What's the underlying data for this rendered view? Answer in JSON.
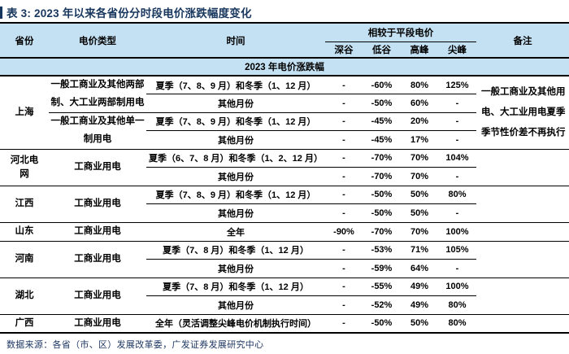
{
  "page": {
    "title": "表 3: 2023 年以来各省份分时段电价涨跌幅度变化",
    "source_note": "数据来源：各省（市、区）发展改革委，广发证券发展研究中心"
  },
  "colors": {
    "title_navy": "#17365D",
    "header_blue": "#C4E1F3",
    "rule_black": "#000000"
  },
  "table": {
    "header": {
      "province": "省份",
      "price_type": "电价类型",
      "time": "时间",
      "vs_flat_group": "相较于平段电价",
      "sub_columns": [
        "深谷",
        "低谷",
        "高峰",
        "尖峰"
      ],
      "remark": "备注"
    },
    "section_title": "2023 年电价涨跌幅",
    "provinces": [
      {
        "name": "上海",
        "remark": "一般工商业及其他用电、大工业用电夏季季节性价差不再执行",
        "groups": [
          {
            "price_type": "一般工商业及其他两部制、大工业两部制用电",
            "rows": [
              {
                "time": "夏季（7、8、9 月）和冬季（1、12 月）",
                "values": [
                  "-",
                  "-60%",
                  "80%",
                  "125%"
                ]
              },
              {
                "time": "其他月份",
                "values": [
                  "-",
                  "-50%",
                  "60%",
                  "-"
                ]
              }
            ]
          },
          {
            "price_type": "一般工商业及其他单一制用电",
            "rows": [
              {
                "time": "夏季（7、8、9 月）和冬季（1、12 月）",
                "values": [
                  "-",
                  "-45%",
                  "20%",
                  "-"
                ]
              },
              {
                "time": "其他月份",
                "values": [
                  "-",
                  "-45%",
                  "17%",
                  "-"
                ]
              }
            ]
          }
        ]
      },
      {
        "name": "河北电网",
        "remark": "",
        "groups": [
          {
            "price_type": "工商业用电",
            "rows": [
              {
                "time": "夏季（6、7、8 月）和冬季（1、2、12 月）",
                "values": [
                  "-",
                  "-70%",
                  "70%",
                  "104%"
                ]
              },
              {
                "time": "其他月份",
                "values": [
                  "-",
                  "-70%",
                  "70%",
                  "-"
                ]
              }
            ]
          }
        ]
      },
      {
        "name": "江西",
        "remark": "",
        "groups": [
          {
            "price_type": "工商业用电",
            "rows": [
              {
                "time": "夏季（7、8、9 月）和冬季（1、12 月）",
                "values": [
                  "-",
                  "-50%",
                  "50%",
                  "80%"
                ]
              },
              {
                "time": "其他月份",
                "values": [
                  "-",
                  "-50%",
                  "50%",
                  "-"
                ]
              }
            ]
          }
        ]
      },
      {
        "name": "山东",
        "remark": "",
        "groups": [
          {
            "price_type": "工商业用电",
            "rows": [
              {
                "time": "全年",
                "values": [
                  "-90%",
                  "-70%",
                  "70%",
                  "100%"
                ]
              }
            ]
          }
        ]
      },
      {
        "name": "河南",
        "remark": "",
        "groups": [
          {
            "price_type": "工商业用电",
            "rows": [
              {
                "time": "夏季（7、8 月）和冬季（1、12 月）",
                "values": [
                  "-",
                  "-53%",
                  "71%",
                  "105%"
                ]
              },
              {
                "time": "其他月份",
                "values": [
                  "-",
                  "-59%",
                  "64%",
                  "-"
                ]
              }
            ]
          }
        ]
      },
      {
        "name": "湖北",
        "remark": "",
        "groups": [
          {
            "price_type": "工商业用电",
            "rows": [
              {
                "time": "夏季（7、8 月）和冬季（1、12 月）",
                "values": [
                  "-",
                  "-55%",
                  "49%",
                  "100%"
                ]
              },
              {
                "time": "其他月份",
                "values": [
                  "-",
                  "-52%",
                  "49%",
                  "80%"
                ]
              }
            ]
          }
        ]
      },
      {
        "name": "广西",
        "remark": "",
        "groups": [
          {
            "price_type": "工商业用电",
            "rows": [
              {
                "time": "全年（灵活调整尖峰电价机制执行时间）",
                "values": [
                  "-",
                  "-50%",
                  "50%",
                  "80%"
                ]
              }
            ]
          }
        ]
      }
    ]
  }
}
